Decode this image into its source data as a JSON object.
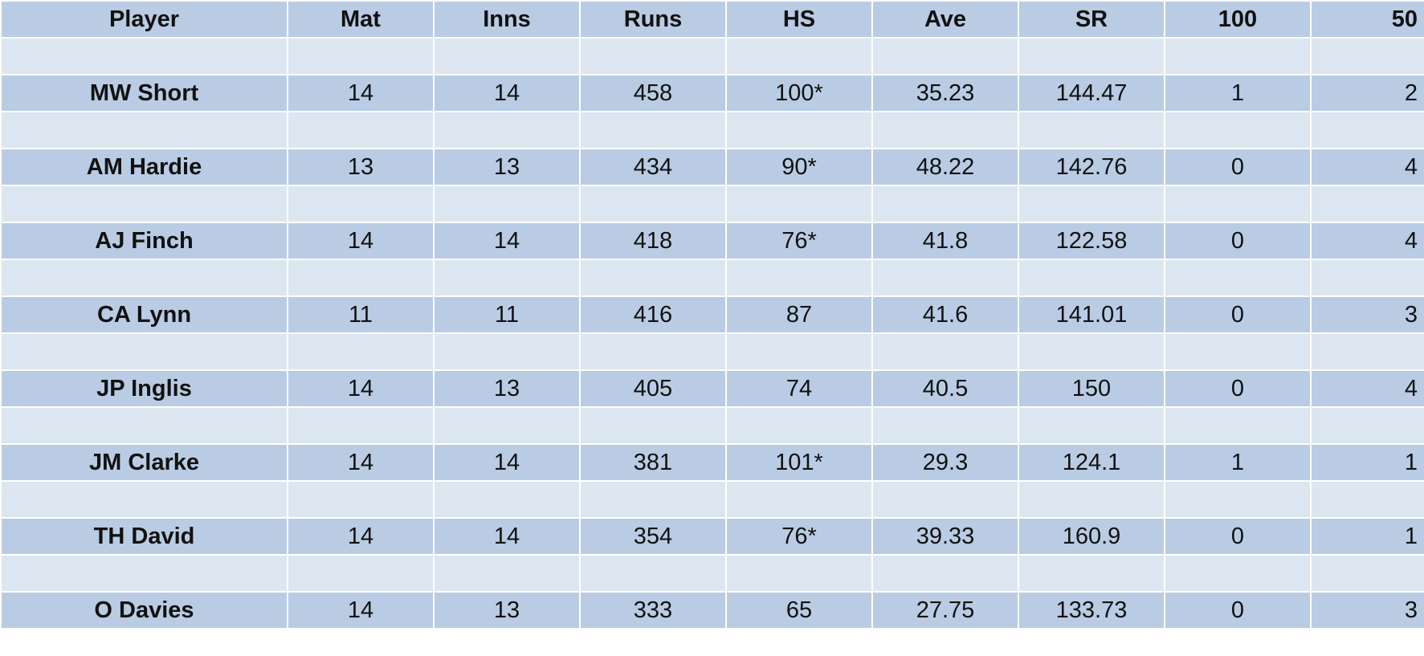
{
  "table": {
    "headers": [
      "Player",
      "Mat",
      "Inns",
      "Runs",
      "HS",
      "Ave",
      "SR",
      "100",
      "50"
    ],
    "rows": [
      [
        "MW Short",
        "14",
        "14",
        "458",
        "100*",
        "35.23",
        "144.47",
        "1",
        "2"
      ],
      [
        "AM Hardie",
        "13",
        "13",
        "434",
        "90*",
        "48.22",
        "142.76",
        "0",
        "4"
      ],
      [
        "AJ Finch",
        "14",
        "14",
        "418",
        "76*",
        "41.8",
        "122.58",
        "0",
        "4"
      ],
      [
        "CA Lynn",
        "11",
        "11",
        "416",
        "87",
        "41.6",
        "141.01",
        "0",
        "3"
      ],
      [
        "JP Inglis",
        "14",
        "13",
        "405",
        "74",
        "40.5",
        "150",
        "0",
        "4"
      ],
      [
        "JM Clarke",
        "14",
        "14",
        "381",
        "101*",
        "29.3",
        "124.1",
        "1",
        "1"
      ],
      [
        "TH David",
        "14",
        "14",
        "354",
        "76*",
        "39.33",
        "160.9",
        "0",
        "1"
      ],
      [
        "O Davies",
        "14",
        "13",
        "333",
        "65",
        "27.75",
        "133.73",
        "0",
        "3"
      ]
    ]
  },
  "colors": {
    "row_blue": "#b9cce4",
    "row_light": "#dce6f1",
    "grid": "#ffffff",
    "text": "#111111"
  }
}
